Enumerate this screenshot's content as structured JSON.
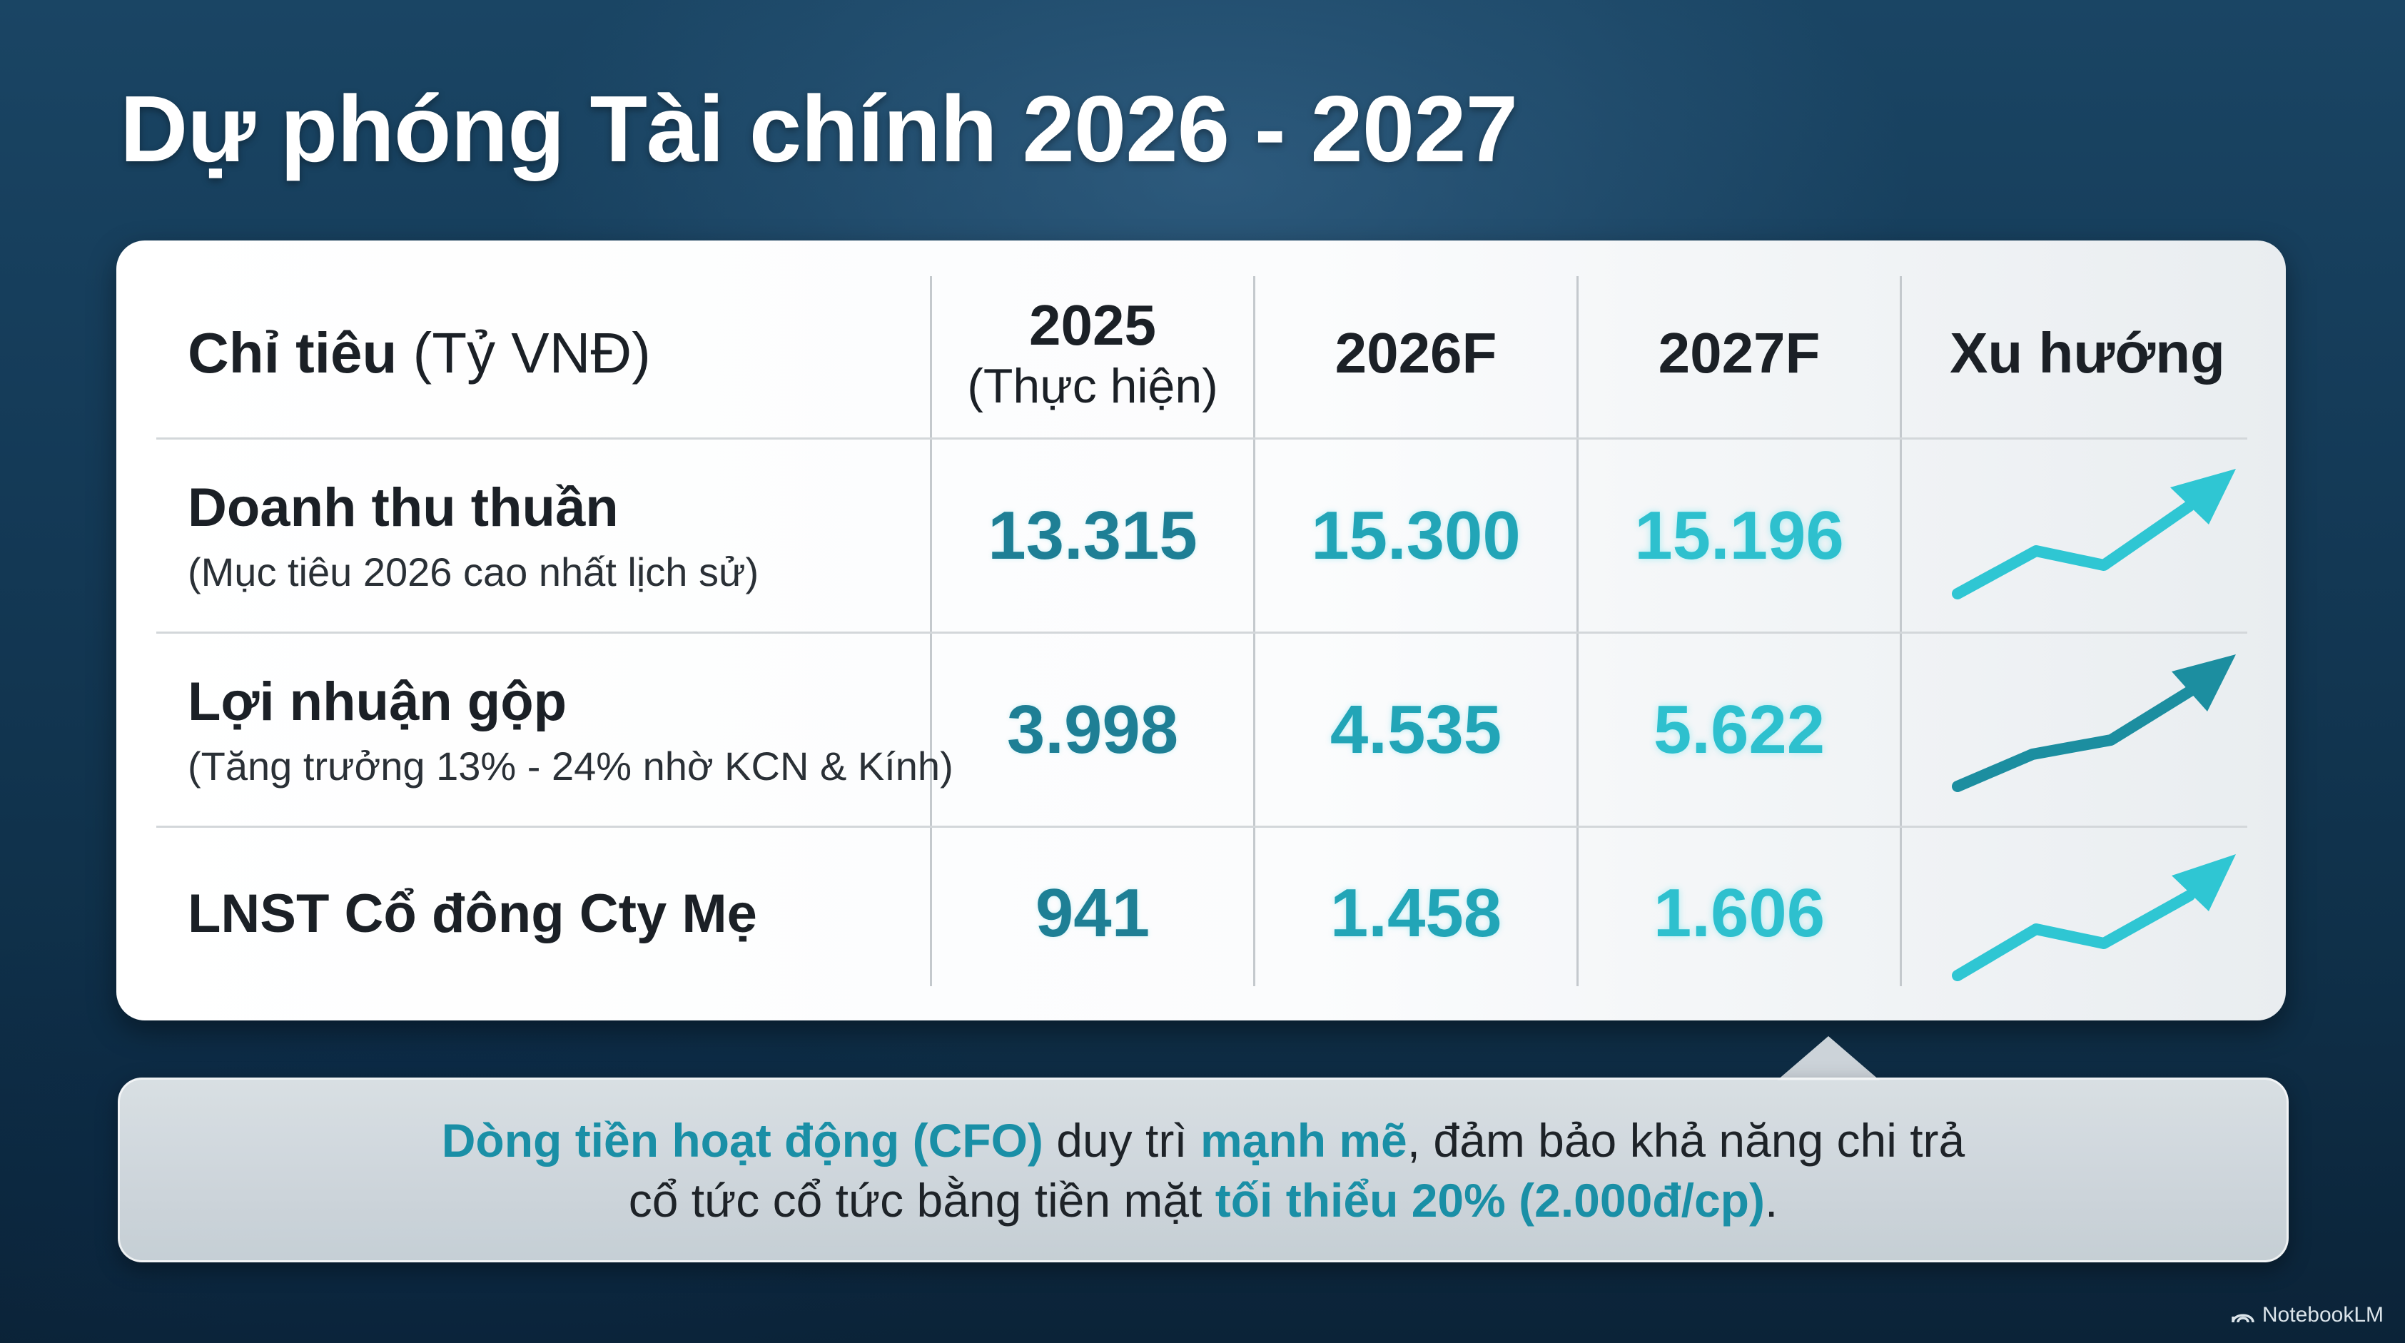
{
  "title": "Dự phóng Tài chính 2026 - 2027",
  "table": {
    "header": {
      "metric_bold": "Chỉ tiêu",
      "metric_unit": " (Tỷ VNĐ)",
      "col_2025": "2025",
      "col_2025_sub": "(Thực hiện)",
      "col_2026": "2026F",
      "col_2027": "2027F",
      "col_trend": "Xu hướng"
    },
    "rows": [
      {
        "label": "Doanh thu thuần",
        "note": "(Mục tiêu 2026 cao nhất lịch sử)",
        "v2025": "13.315",
        "v2026": "15.300",
        "v2027": "15.196",
        "trend_icon": "trend-up-arrow-icon"
      },
      {
        "label": "Lợi nhuận gộp",
        "note": "(Tăng trưởng 13% - 24% nhờ KCN & Kính)",
        "v2025": "3.998",
        "v2026": "4.535",
        "v2027": "5.622",
        "trend_icon": "trend-up-arrow-icon"
      },
      {
        "label": "LNST Cổ đông Cty Mẹ",
        "note": "",
        "v2025": "941",
        "v2026": "1.458",
        "v2027": "1.606",
        "trend_icon": "trend-up-arrow-icon"
      }
    ]
  },
  "note": {
    "line1": [
      {
        "text": "Dòng tiền hoạt động (CFO)",
        "highlight": true
      },
      {
        "text": " duy trì ",
        "highlight": false
      },
      {
        "text": "mạnh mẽ",
        "highlight": true
      },
      {
        "text": ", đảm bảo khả năng chi trả",
        "highlight": false
      }
    ],
    "line2": [
      {
        "text": "cổ tức cổ tức bằng tiền mặt ",
        "highlight": false
      },
      {
        "text": "tối thiểu 20% (2.000đ/cp)",
        "highlight": true
      },
      {
        "text": ".",
        "highlight": false
      }
    ]
  },
  "branding": {
    "label": "NotebookLM",
    "icon": "notebooklm-logo-icon"
  },
  "colors": {
    "accent_dark": "#1e7f95",
    "accent_mid": "#22a5b7",
    "accent_light": "#2ec0ce",
    "highlight": "#1a8fa6"
  }
}
